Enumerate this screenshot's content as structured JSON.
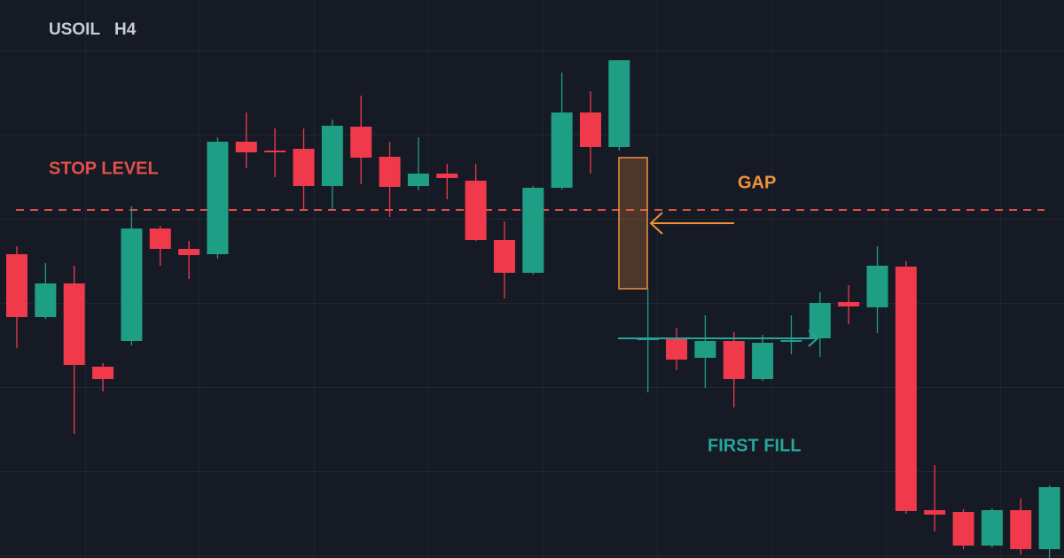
{
  "chart_data": {
    "type": "candlestick",
    "symbol": "USOIL",
    "timeframe": "H4",
    "up_color": "#1f9e86",
    "down_color": "#f03a4c",
    "ylim": [
      0,
      630
    ],
    "open": [
      343,
      272,
      310,
      216,
      245,
      372,
      349,
      343,
      470,
      460,
      462,
      420,
      487,
      453,
      420,
      434,
      426,
      359,
      322,
      418,
      503,
      464,
      247,
      249,
      226,
      245,
      202,
      244,
      248,
      289,
      283,
      329,
      54,
      52,
      14,
      54,
      10
    ],
    "high": [
      352,
      333,
      330,
      220,
      397,
      375,
      358,
      475,
      503,
      485,
      485,
      495,
      522,
      470,
      475,
      445,
      445,
      380,
      420,
      548,
      527,
      562,
      304,
      260,
      274,
      255,
      252,
      274,
      300,
      308,
      352,
      335,
      105,
      55,
      56,
      67,
      82
    ],
    "low": [
      237,
      270,
      140,
      188,
      240,
      330,
      315,
      338,
      440,
      430,
      393,
      393,
      422,
      385,
      415,
      405,
      358,
      293,
      320,
      416,
      434,
      460,
      187,
      212,
      192,
      170,
      200,
      230,
      227,
      264,
      254,
      50,
      30,
      10,
      12,
      4,
      0
    ],
    "close": [
      272,
      310,
      218,
      202,
      372,
      349,
      342,
      470,
      458,
      458,
      420,
      488,
      452,
      419,
      434,
      429,
      359,
      322,
      418,
      503,
      464,
      562,
      248,
      224,
      245,
      202,
      243,
      246,
      288,
      284,
      330,
      53,
      49,
      14,
      54,
      10,
      80
    ],
    "stop_level": {
      "label": "STOP LEVEL",
      "value": 393,
      "color": "#e0504a"
    },
    "gap": {
      "label": "GAP",
      "low": 304,
      "high": 452,
      "color": "#f0913a"
    },
    "first_fill": {
      "label": "FIRST FILL",
      "value": 248,
      "color": "#26a69a"
    }
  }
}
